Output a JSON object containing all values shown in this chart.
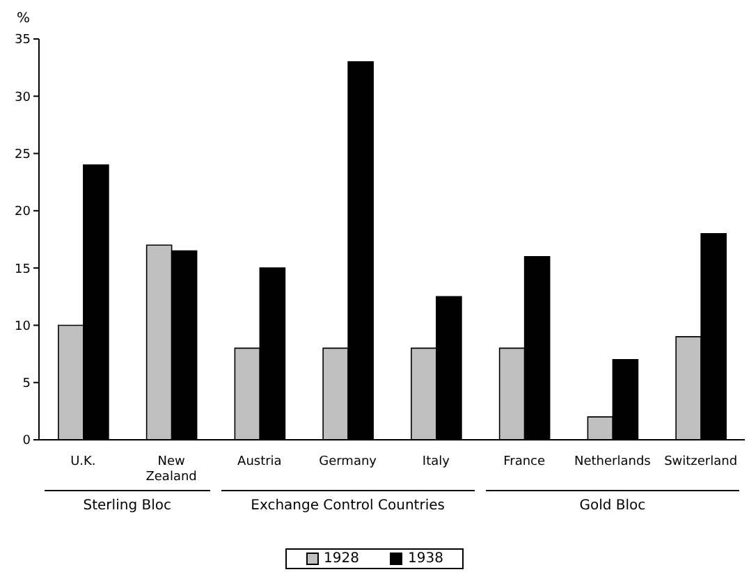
{
  "chart_data": {
    "type": "bar",
    "ylabel": "%",
    "categories": [
      "U.K.",
      "New Zealand",
      "Austria",
      "Germany",
      "Italy",
      "France",
      "Netherlands",
      "Switzerland"
    ],
    "series": [
      {
        "name": "1928",
        "color": "#c0c0c0",
        "values": [
          10,
          17,
          8,
          8,
          8,
          8,
          2,
          9
        ]
      },
      {
        "name": "1938",
        "color": "#000000",
        "values": [
          24,
          16.5,
          15,
          33,
          12.5,
          16,
          7,
          18
        ]
      }
    ],
    "ylim": [
      0,
      35
    ],
    "yticks": [
      0,
      5,
      10,
      15,
      20,
      25,
      30,
      35
    ],
    "grid": false,
    "legend": "bottom",
    "annotations": [
      "Sterling Bloc",
      "Exchange Control Countries",
      "Gold Bloc"
    ]
  }
}
